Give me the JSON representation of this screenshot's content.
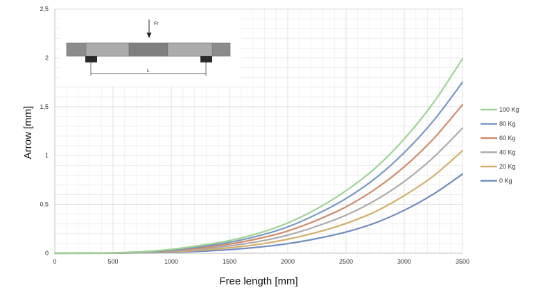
{
  "chart_data": {
    "type": "line",
    "title": "",
    "xlabel": "Free length [mm]",
    "ylabel": "Arrow [mm]",
    "xlim": [
      0,
      3500
    ],
    "ylim": [
      0,
      2.5
    ],
    "x_ticks": [
      "0",
      "500",
      "1000",
      "1500",
      "2000",
      "2500",
      "3000",
      "3500"
    ],
    "y_ticks": [
      "0",
      "0,5",
      "1",
      "1,5",
      "2",
      "2,5"
    ],
    "grid": true,
    "legend_position": "right",
    "x": [
      0,
      250,
      500,
      750,
      1000,
      1250,
      1500,
      1750,
      2000,
      2250,
      2500,
      2750,
      3000,
      3250,
      3500
    ],
    "series": [
      {
        "name": "100 Kg",
        "color": "#9ed494",
        "values": [
          0,
          0.001,
          0.005,
          0.016,
          0.04,
          0.08,
          0.13,
          0.205,
          0.31,
          0.455,
          0.64,
          0.87,
          1.17,
          1.54,
          1.99
        ]
      },
      {
        "name": "80 Kg",
        "color": "#7898c4",
        "values": [
          0,
          0.001,
          0.004,
          0.013,
          0.033,
          0.067,
          0.112,
          0.178,
          0.27,
          0.4,
          0.56,
          0.765,
          1.03,
          1.355,
          1.75
        ]
      },
      {
        "name": "60 Kg",
        "color": "#d08a6a",
        "values": [
          0,
          0.001,
          0.003,
          0.011,
          0.027,
          0.055,
          0.094,
          0.15,
          0.228,
          0.338,
          0.475,
          0.655,
          0.885,
          1.17,
          1.52
        ]
      },
      {
        "name": "40 Kg",
        "color": "#aaaaaa",
        "values": [
          0,
          0.001,
          0.003,
          0.009,
          0.021,
          0.043,
          0.075,
          0.12,
          0.185,
          0.277,
          0.39,
          0.54,
          0.735,
          0.98,
          1.28
        ]
      },
      {
        "name": "20 Kg",
        "color": "#d6ad6a",
        "values": [
          0,
          0.0,
          0.002,
          0.006,
          0.015,
          0.031,
          0.056,
          0.091,
          0.143,
          0.214,
          0.305,
          0.425,
          0.59,
          0.79,
          1.05
        ]
      },
      {
        "name": "0 Kg",
        "color": "#6f8dbd",
        "values": [
          0,
          0.0,
          0.001,
          0.004,
          0.01,
          0.02,
          0.037,
          0.062,
          0.098,
          0.15,
          0.217,
          0.31,
          0.44,
          0.605,
          0.81
        ]
      }
    ]
  },
  "diagram": {
    "force_label": "Fr",
    "length_label": "L"
  },
  "colors": {
    "grid": "#dedede",
    "axis": "#bfbfbf",
    "beam_outer": "#8a8a8a",
    "beam_light": "#aeaeae",
    "beam_dark": "#7a7a7a",
    "support": "#2a2a2a"
  }
}
